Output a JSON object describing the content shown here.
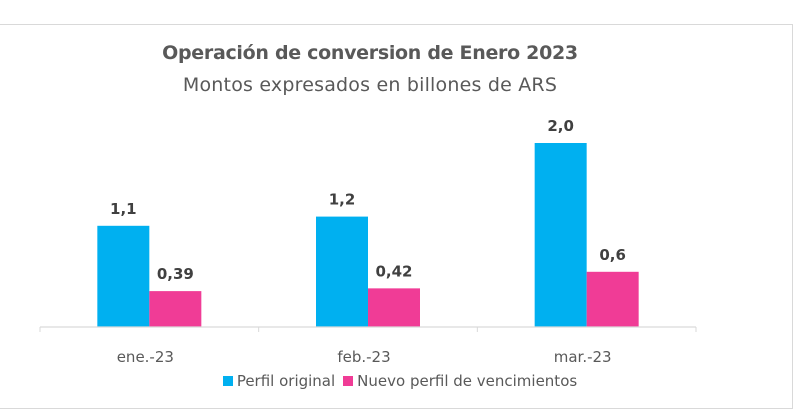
{
  "chart_data": {
    "type": "bar",
    "title": "Operación de conversion de Enero 2023",
    "subtitle": "Montos expresados en billones de ARS",
    "categories": [
      "ene.-23",
      "feb.-23",
      "mar.-23"
    ],
    "series": [
      {
        "name": "Perfil original",
        "color": "#00b0f0",
        "values": [
          1.1,
          1.2,
          2.0
        ],
        "labels": [
          "1,1",
          "1,2",
          "2,0"
        ]
      },
      {
        "name": "Nuevo perfil de vencimientos",
        "color": "#f03c96",
        "values": [
          0.39,
          0.42,
          0.6
        ],
        "labels": [
          "0,39",
          "0,42",
          "0,6"
        ]
      }
    ],
    "xlabel": "",
    "ylabel": "",
    "ylim": [
      0,
      2.2
    ],
    "grid": false,
    "legend": "bottom"
  }
}
